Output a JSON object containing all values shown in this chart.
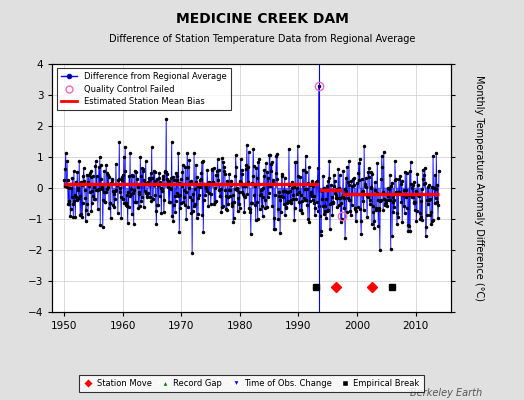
{
  "title": "MEDICINE CREEK DAM",
  "subtitle": "Difference of Station Temperature Data from Regional Average",
  "ylabel": "Monthly Temperature Anomaly Difference (°C)",
  "xlim": [
    1948,
    2016
  ],
  "ylim": [
    -4,
    4
  ],
  "yticks": [
    -4,
    -3,
    -2,
    -1,
    0,
    1,
    2,
    3,
    4
  ],
  "xticks": [
    1950,
    1960,
    1970,
    1980,
    1990,
    2000,
    2010
  ],
  "seed": 42,
  "start_year": 1950.0,
  "end_year": 2014.0,
  "n_months": 768,
  "bias_segments": [
    {
      "x_start": 1950.0,
      "x_end": 1993.5,
      "bias": 0.12
    },
    {
      "x_start": 1993.5,
      "x_end": 1997.5,
      "bias": -0.05
    },
    {
      "x_start": 1997.5,
      "x_end": 2014.0,
      "bias": -0.18
    }
  ],
  "spike_year": 1993.5,
  "spike_value": 3.3,
  "qc_failed_years": [
    1993.5,
    1997.5
  ],
  "qc_failed_values": [
    3.3,
    -0.9
  ],
  "station_moves": [
    1996.5,
    2002.5
  ],
  "empirical_breaks": [
    1993.0,
    2006.0
  ],
  "background_color": "#e0e0e0",
  "plot_bg_color": "#ffffff",
  "line_color": "#0000ff",
  "dot_color": "#000000",
  "bias_color": "#ff0000",
  "qc_color": "#ff69b4",
  "station_move_color": "#ff0000",
  "record_gap_color": "#008000",
  "tobs_color": "#0000ff",
  "empirical_break_color": "#000000",
  "watermark": "Berkeley Earth"
}
